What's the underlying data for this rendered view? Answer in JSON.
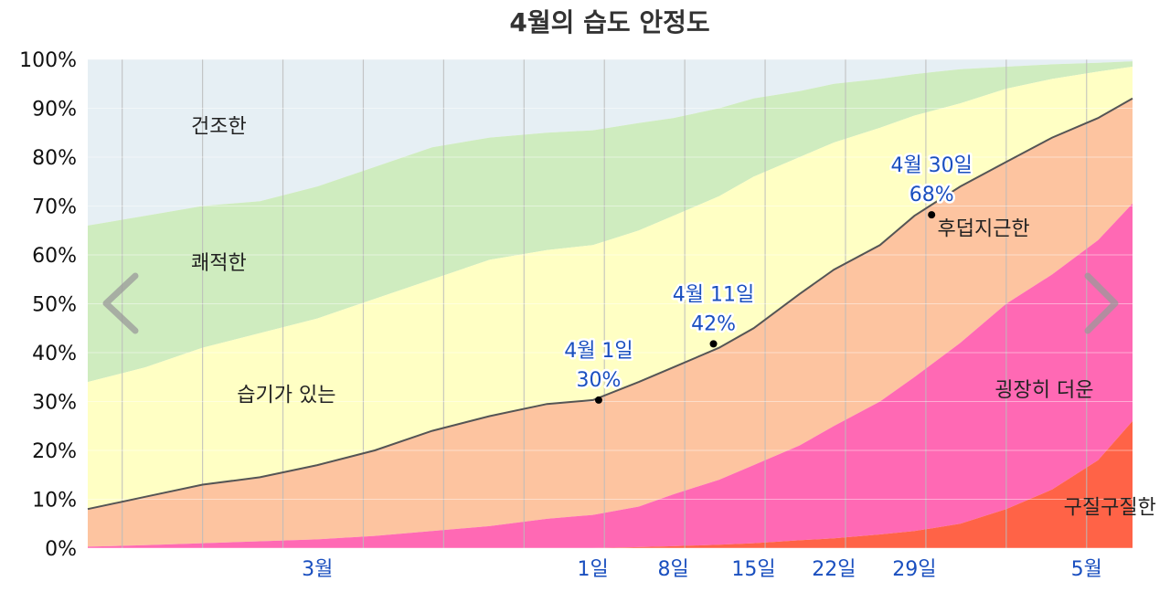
{
  "chart_data": {
    "type": "area",
    "title": "4월의 습도 안정도",
    "ylim": [
      0,
      100
    ],
    "yticks": [
      "0%",
      "10%",
      "20%",
      "30%",
      "40%",
      "50%",
      "60%",
      "70%",
      "80%",
      "90%",
      "100%"
    ],
    "x_ticks": [
      {
        "label": "3월",
        "x": 20
      },
      {
        "label": "1일",
        "x": 44
      },
      {
        "label": "8일",
        "x": 51
      },
      {
        "label": "15일",
        "x": 58
      },
      {
        "label": "22일",
        "x": 65
      },
      {
        "label": "29일",
        "x": 72
      },
      {
        "label": "5월",
        "x": 87
      }
    ],
    "x_range": [
      0,
      91
    ],
    "grid": true,
    "x": [
      0,
      5,
      10,
      15,
      20,
      25,
      30,
      35,
      40,
      44,
      48,
      51,
      55,
      58,
      62,
      65,
      69,
      72,
      76,
      80,
      84,
      88,
      91
    ],
    "boundaries": [
      {
        "name": "구질구질한",
        "values": [
          0,
          0,
          0,
          0,
          0,
          0,
          0,
          0,
          0,
          0,
          0.2,
          0.4,
          0.7,
          1,
          1.6,
          2,
          2.8,
          3.5,
          5,
          8,
          12,
          18,
          26
        ]
      },
      {
        "name": "굉장히 더운",
        "values": [
          0.3,
          0.6,
          1,
          1.4,
          1.8,
          2.5,
          3.5,
          4.5,
          6,
          6.8,
          8.5,
          11,
          14,
          17,
          21,
          25,
          30,
          35,
          42,
          50,
          56,
          63,
          70.5
        ]
      },
      {
        "name": "후덥지근한",
        "values": [
          8,
          10.5,
          13,
          14.5,
          17,
          20,
          24,
          27,
          29.5,
          30.3,
          34,
          37,
          41,
          45,
          52,
          57,
          62,
          68,
          74,
          79,
          84,
          88,
          92
        ]
      },
      {
        "name": "습기가 있는",
        "values": [
          34,
          37,
          41,
          44,
          47,
          51,
          55,
          59,
          61,
          62,
          65,
          68,
          72,
          76,
          80,
          83,
          86,
          88.5,
          91,
          94,
          96,
          97.5,
          98.5
        ]
      },
      {
        "name": "쾌적한",
        "values": [
          66,
          68,
          70,
          71,
          74,
          78,
          82,
          84,
          85,
          85.5,
          87,
          88,
          90,
          92,
          93.5,
          95,
          96,
          97,
          98,
          98.5,
          99,
          99.3,
          99.6
        ]
      },
      {
        "name": "건조한",
        "values": [
          100,
          100,
          100,
          100,
          100,
          100,
          100,
          100,
          100,
          100,
          100,
          100,
          100,
          100,
          100,
          100,
          100,
          100,
          100,
          100,
          100,
          100,
          100
        ]
      }
    ],
    "bands": [
      {
        "name": "구질구질한",
        "color": "#ff6347",
        "label_x": 85,
        "label_y": 7
      },
      {
        "name": "굉장히 더운",
        "color": "#ff69b4",
        "label_x": 79,
        "label_y": 31
      },
      {
        "name": "후덥지근한",
        "color": "#fdc4a0",
        "label_x": 74,
        "label_y": 64
      },
      {
        "name": "습기가 있는",
        "color": "#ffffc4",
        "label_x": 13,
        "label_y": 30
      },
      {
        "name": "쾌적한",
        "color": "#cfecbf",
        "label_x": 9,
        "label_y": 57
      },
      {
        "name": "건조한",
        "color": "#e6eff4",
        "label_x": 9,
        "label_y": 85
      }
    ],
    "line_color": "#555555",
    "callouts": [
      {
        "date": "4월 1일",
        "value": "30%",
        "x": 44.5,
        "y": 30.3
      },
      {
        "date": "4월 11일",
        "value": "42%",
        "x": 54.5,
        "y": 41.8
      },
      {
        "date": "4월 30일",
        "value": "68%",
        "x": 73.5,
        "y": 68.2
      }
    ]
  },
  "nav": {
    "prev_icon": "chevron-left-icon",
    "next_icon": "chevron-right-icon"
  }
}
